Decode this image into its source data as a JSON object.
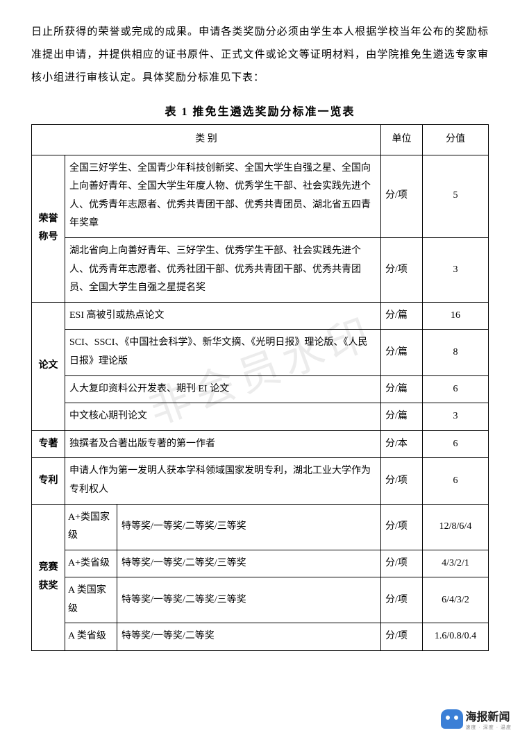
{
  "intro": "日止所获得的荣誉或完成的成果。申请各类奖励分必须由学生本人根据学校当年公布的奖励标准提出申请，并提供相应的证书原件、正式文件或论文等证明材料，由学院推免生遴选专家审核小组进行审核认定。具体奖励分标准见下表：",
  "tableTitle": "表 1  推免生遴选奖励分标准一览表",
  "watermark": "非会员水印",
  "headers": {
    "category": "类    别",
    "unit": "单位",
    "score": "分值"
  },
  "rows": {
    "honor": {
      "label": "荣誉\n称号",
      "r1": {
        "desc": "全国三好学生、全国青少年科技创新奖、全国大学生自强之星、全国向上向善好青年、全国大学生年度人物、优秀学生干部、社会实践先进个人、优秀青年志愿者、优秀共青团干部、优秀共青团员、湖北省五四青年奖章",
        "unit": "分/项",
        "score": "5"
      },
      "r2": {
        "desc": "湖北省向上向善好青年、三好学生、优秀学生干部、社会实践先进个人、优秀青年志愿者、优秀社团干部、优秀共青团干部、优秀共青团员、全国大学生自强之星提名奖",
        "unit": "分/项",
        "score": "3"
      }
    },
    "paper": {
      "label": "论文",
      "r1": {
        "desc": "ESI 高被引或热点论文",
        "unit": "分/篇",
        "score": "16"
      },
      "r2": {
        "desc": "SCI、SSCI、《中国社会科学》、新华文摘、《光明日报》理论版、《人民日报》理论版",
        "unit": "分/篇",
        "score": "8"
      },
      "r3": {
        "desc": "人大复印资料公开发表、期刊 EI 论文",
        "unit": "分/篇",
        "score": "6"
      },
      "r4": {
        "desc": "中文核心期刊论文",
        "unit": "分/篇",
        "score": "3"
      }
    },
    "book": {
      "label": "专著",
      "desc": "独撰者及合著出版专著的第一作者",
      "unit": "分/本",
      "score": "6"
    },
    "patent": {
      "label": "专利",
      "desc": "申请人作为第一发明人获本学科领域国家发明专利，湖北工业大学作为专利权人",
      "unit": "分/项",
      "score": "6"
    },
    "contest": {
      "label": "竞赛\n获奖",
      "r1": {
        "sub": "A+类国家级",
        "desc": "特等奖/一等奖/二等奖/三等奖",
        "unit": "分/项",
        "score": "12/8/6/4"
      },
      "r2": {
        "sub": "A+类省级",
        "desc": "特等奖/一等奖/二等奖/三等奖",
        "unit": "分/项",
        "score": "4/3/2/1"
      },
      "r3": {
        "sub": "A 类国家级",
        "desc": "特等奖/一等奖/二等奖/三等奖",
        "unit": "分/项",
        "score": "6/4/3/2"
      },
      "r4": {
        "sub": "A 类省级",
        "desc": "特等奖/一等奖/二等奖",
        "unit": "分/项",
        "score": "1.6/0.8/0.4"
      }
    }
  },
  "footer": {
    "brand": "海报新闻",
    "tagline": "速度 · 深度 · 温度"
  }
}
